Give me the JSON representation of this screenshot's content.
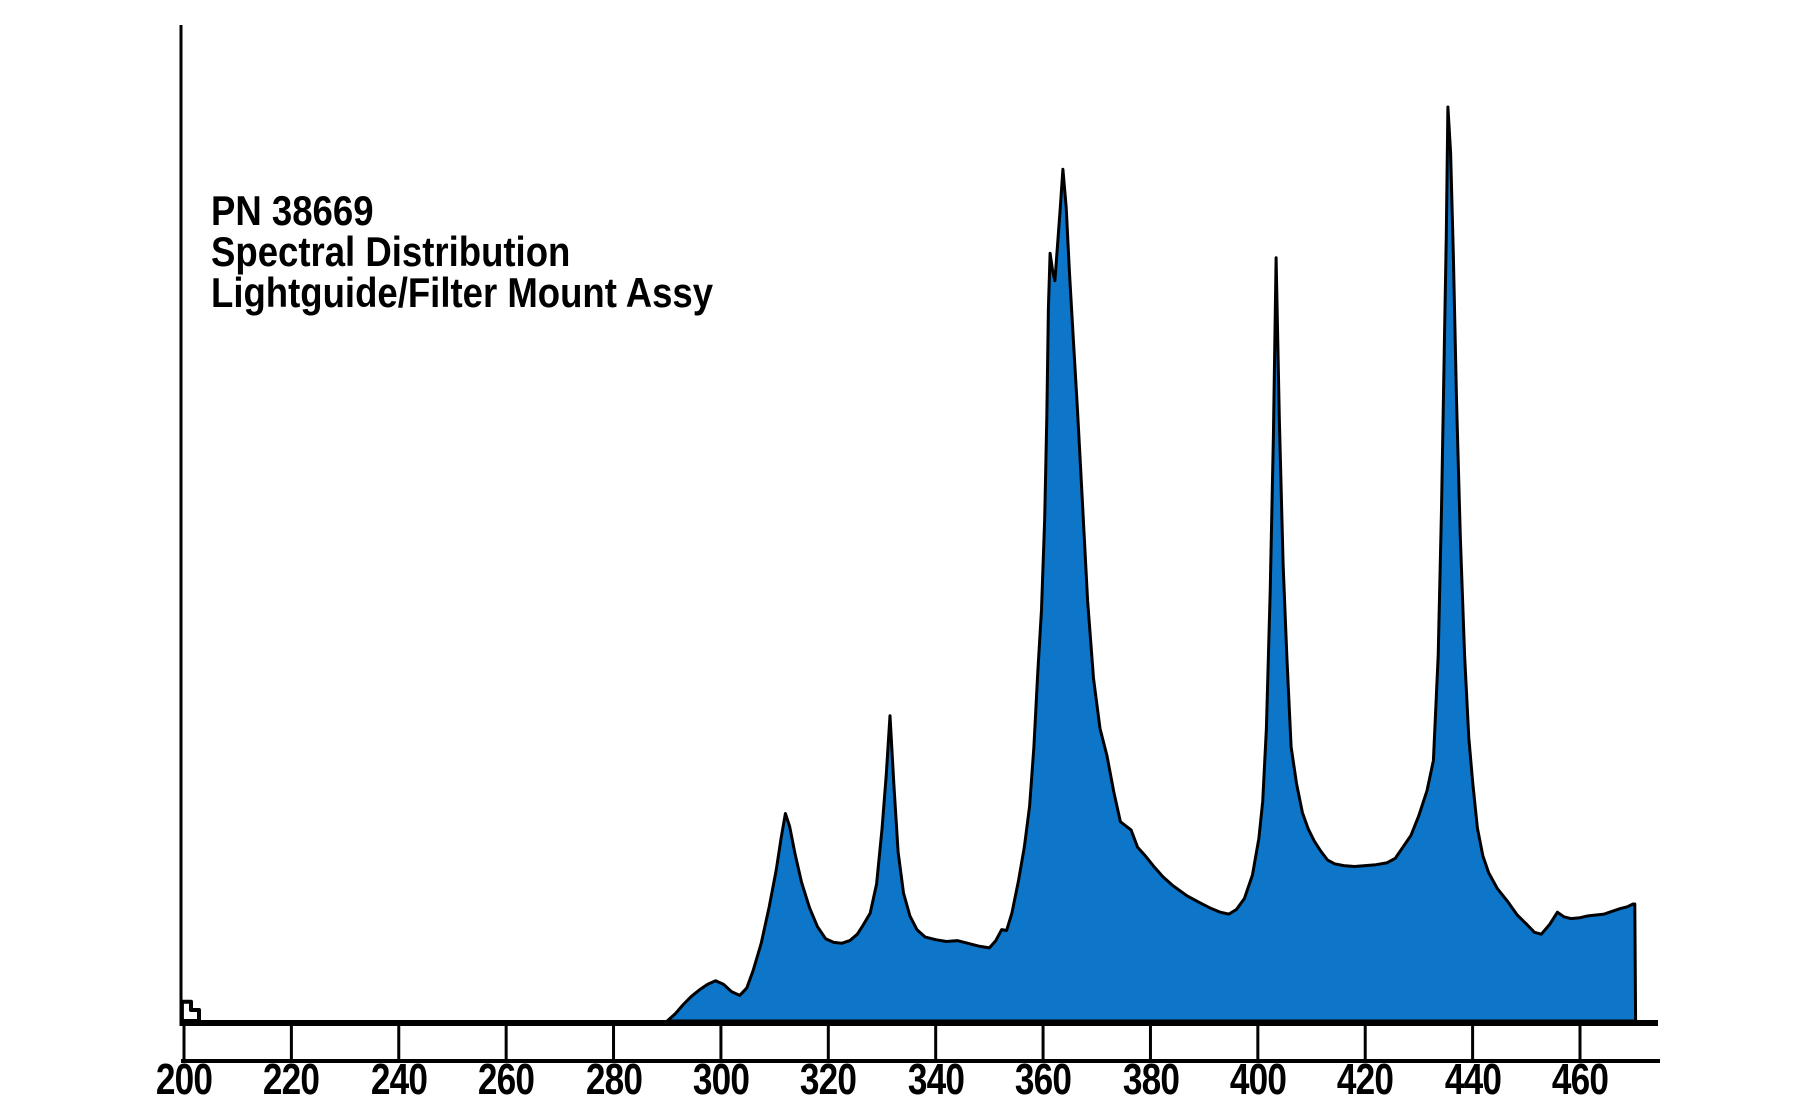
{
  "figure": {
    "annotation": {
      "line1": "PN 38669",
      "line2": "Spectral Distribution",
      "line3": "Lightguide/Filter Mount Assy"
    }
  },
  "chart_data": {
    "type": "area",
    "title": "PN 38669 Spectral Distribution Lightguide/Filter Mount Assy",
    "xlabel": "",
    "ylabel": "",
    "grid": false,
    "legend": null,
    "x_axis": {
      "min": 200,
      "max": 472,
      "tick_step": 20,
      "ticks": [
        200,
        220,
        240,
        260,
        280,
        300,
        320,
        340,
        360,
        380,
        400,
        420,
        440,
        460
      ],
      "tick_labels": [
        "200",
        "220",
        "240",
        "260",
        "280",
        "300",
        "320",
        "340",
        "360",
        "380",
        "400",
        "420",
        "440",
        "460"
      ]
    },
    "y_axis": {
      "min": 0,
      "max": 1,
      "ticks_visible": false
    },
    "colors": {
      "fill": "#0e76c9",
      "line": "#000000",
      "background": "#ffffff"
    },
    "peaks": [
      {
        "nm": 312,
        "rel_intensity": 0.23
      },
      {
        "nm": 331.5,
        "rel_intensity": 0.33
      },
      {
        "nm": 363.7,
        "rel_intensity": 0.93
      },
      {
        "nm": 403.4,
        "rel_intensity": 0.84
      },
      {
        "nm": 435.4,
        "rel_intensity": 1.0
      }
    ],
    "start_blip": {
      "x_nm_start": 199.6,
      "x_nm_mid": 201.3,
      "x_nm_end": 202.8,
      "h1": 0.021,
      "h2": 0.012,
      "fill": "#ffffff"
    },
    "series": [
      {
        "name": "spectral-distribution",
        "points": [
          [
            290,
            0
          ],
          [
            291.5,
            0.008
          ],
          [
            293,
            0.018
          ],
          [
            294.5,
            0.027
          ],
          [
            296,
            0.034
          ],
          [
            297.5,
            0.04
          ],
          [
            299,
            0.044
          ],
          [
            300.5,
            0.04
          ],
          [
            302,
            0.032
          ],
          [
            303.5,
            0.028
          ],
          [
            304.8,
            0.036
          ],
          [
            306,
            0.055
          ],
          [
            307.5,
            0.085
          ],
          [
            309,
            0.125
          ],
          [
            310.3,
            0.165
          ],
          [
            311.2,
            0.2
          ],
          [
            312,
            0.227
          ],
          [
            312.8,
            0.213
          ],
          [
            313.8,
            0.183
          ],
          [
            315,
            0.152
          ],
          [
            316.5,
            0.124
          ],
          [
            318,
            0.103
          ],
          [
            319.5,
            0.09
          ],
          [
            321,
            0.086
          ],
          [
            322.5,
            0.085
          ],
          [
            324,
            0.088
          ],
          [
            325.4,
            0.095
          ],
          [
            326.5,
            0.105
          ],
          [
            327.8,
            0.118
          ],
          [
            329,
            0.15
          ],
          [
            330,
            0.21
          ],
          [
            330.8,
            0.27
          ],
          [
            331.5,
            0.334
          ],
          [
            332.2,
            0.26
          ],
          [
            333,
            0.185
          ],
          [
            334,
            0.14
          ],
          [
            335.2,
            0.115
          ],
          [
            336.5,
            0.1
          ],
          [
            338,
            0.092
          ],
          [
            340,
            0.089
          ],
          [
            342,
            0.087
          ],
          [
            344,
            0.088
          ],
          [
            346,
            0.085
          ],
          [
            348,
            0.082
          ],
          [
            350,
            0.08
          ],
          [
            351.2,
            0.088
          ],
          [
            352.3,
            0.1
          ],
          [
            353.2,
            0.099
          ],
          [
            354.2,
            0.118
          ],
          [
            355.4,
            0.153
          ],
          [
            356.5,
            0.19
          ],
          [
            357.5,
            0.235
          ],
          [
            358.3,
            0.3
          ],
          [
            359,
            0.38
          ],
          [
            359.7,
            0.45
          ],
          [
            360.3,
            0.55
          ],
          [
            360.7,
            0.66
          ],
          [
            361,
            0.78
          ],
          [
            361.3,
            0.84
          ],
          [
            361.8,
            0.82
          ],
          [
            362.2,
            0.81
          ],
          [
            362.7,
            0.85
          ],
          [
            363.2,
            0.89
          ],
          [
            363.7,
            0.932
          ],
          [
            364.3,
            0.89
          ],
          [
            364.9,
            0.82
          ],
          [
            365.6,
            0.75
          ],
          [
            366.4,
            0.67
          ],
          [
            367.3,
            0.57
          ],
          [
            368.3,
            0.46
          ],
          [
            369.4,
            0.375
          ],
          [
            370.6,
            0.32
          ],
          [
            371.9,
            0.29
          ],
          [
            373.2,
            0.25
          ],
          [
            374.4,
            0.218
          ],
          [
            375.5,
            0.213
          ],
          [
            376.4,
            0.209
          ],
          [
            377.6,
            0.19
          ],
          [
            379,
            0.181
          ],
          [
            380.5,
            0.17
          ],
          [
            382.3,
            0.158
          ],
          [
            384.2,
            0.148
          ],
          [
            386.8,
            0.137
          ],
          [
            389,
            0.13
          ],
          [
            391,
            0.124
          ],
          [
            393,
            0.119
          ],
          [
            394.6,
            0.117
          ],
          [
            396,
            0.122
          ],
          [
            397.5,
            0.134
          ],
          [
            399,
            0.16
          ],
          [
            400.2,
            0.2
          ],
          [
            400.9,
            0.24
          ],
          [
            401.6,
            0.32
          ],
          [
            402.3,
            0.47
          ],
          [
            402.9,
            0.64
          ],
          [
            403.4,
            0.835
          ],
          [
            404,
            0.66
          ],
          [
            404.7,
            0.5
          ],
          [
            405.4,
            0.4
          ],
          [
            406.2,
            0.3
          ],
          [
            407.2,
            0.26
          ],
          [
            408.3,
            0.228
          ],
          [
            409.4,
            0.21
          ],
          [
            410.5,
            0.197
          ],
          [
            411.7,
            0.186
          ],
          [
            413,
            0.176
          ],
          [
            414.3,
            0.172
          ],
          [
            416,
            0.17
          ],
          [
            418,
            0.169
          ],
          [
            420,
            0.17
          ],
          [
            422,
            0.171
          ],
          [
            424,
            0.173
          ],
          [
            425.6,
            0.178
          ],
          [
            427,
            0.19
          ],
          [
            428.5,
            0.203
          ],
          [
            430,
            0.225
          ],
          [
            431.5,
            0.252
          ],
          [
            432.7,
            0.285
          ],
          [
            433.6,
            0.4
          ],
          [
            434.2,
            0.56
          ],
          [
            434.7,
            0.73
          ],
          [
            435.1,
            0.86
          ],
          [
            435.4,
            1.0
          ],
          [
            435.9,
            0.95
          ],
          [
            436.4,
            0.84
          ],
          [
            437,
            0.68
          ],
          [
            437.7,
            0.53
          ],
          [
            438.5,
            0.4
          ],
          [
            439.3,
            0.31
          ],
          [
            440,
            0.262
          ],
          [
            440.9,
            0.211
          ],
          [
            441.9,
            0.181
          ],
          [
            443,
            0.162
          ],
          [
            444.6,
            0.145
          ],
          [
            446.5,
            0.131
          ],
          [
            448.3,
            0.116
          ],
          [
            450.2,
            0.105
          ],
          [
            451.5,
            0.097
          ],
          [
            452.8,
            0.095
          ],
          [
            454.4,
            0.106
          ],
          [
            455.8,
            0.119
          ],
          [
            457,
            0.114
          ],
          [
            458.3,
            0.112
          ],
          [
            460,
            0.113
          ],
          [
            461.5,
            0.115
          ],
          [
            463,
            0.116
          ],
          [
            464.5,
            0.117
          ],
          [
            466,
            0.12
          ],
          [
            467.5,
            0.123
          ],
          [
            468.8,
            0.125
          ],
          [
            469.9,
            0.128
          ],
          [
            470.2,
            0.128
          ]
        ]
      }
    ]
  }
}
